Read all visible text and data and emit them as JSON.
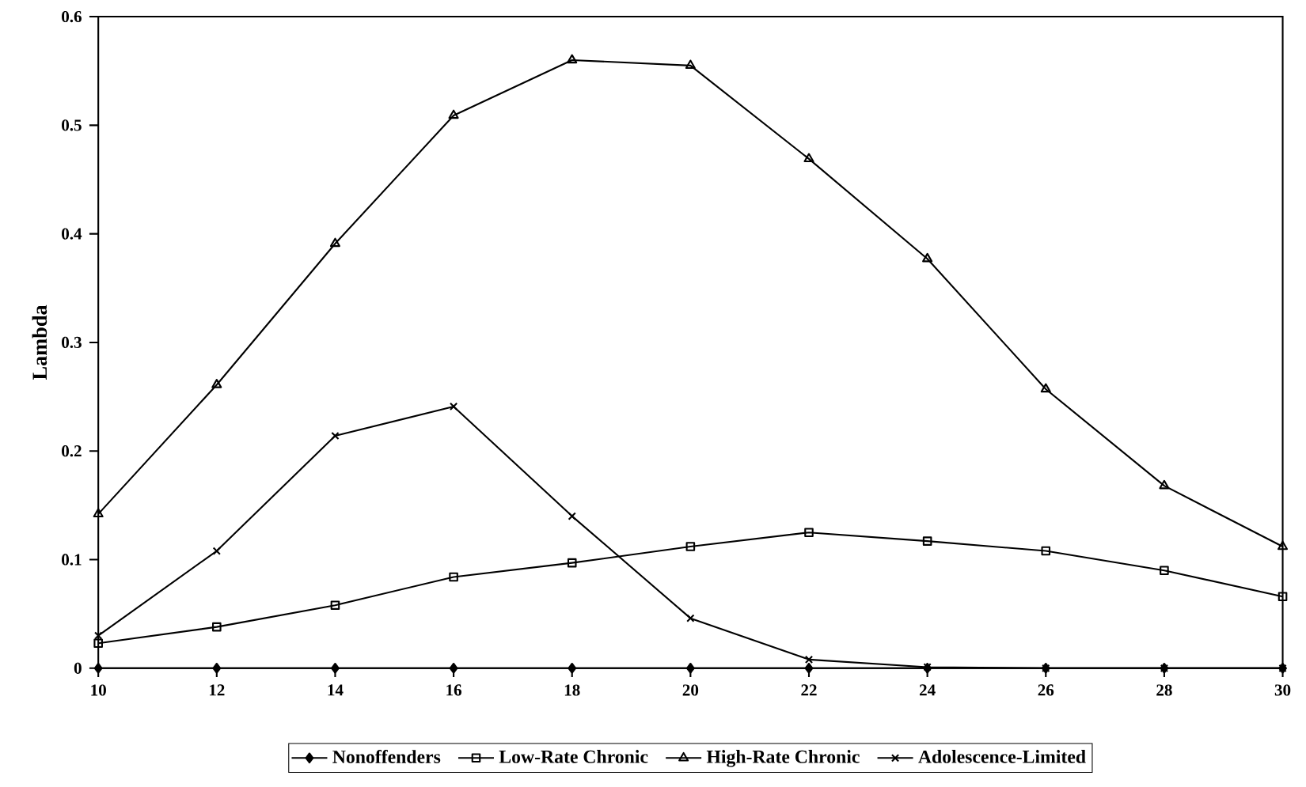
{
  "chart_data": {
    "type": "line",
    "ylabel": "Lambda",
    "x": [
      10,
      12,
      14,
      16,
      18,
      20,
      22,
      24,
      26,
      28,
      30
    ],
    "xlim": [
      10,
      30
    ],
    "xticks": [
      10,
      12,
      14,
      16,
      18,
      20,
      22,
      24,
      26,
      28,
      30
    ],
    "ylim": [
      0,
      0.6
    ],
    "yticks": [
      0,
      0.1,
      0.2,
      0.3,
      0.4,
      0.5,
      0.6
    ],
    "grid": false,
    "legend": "bottom",
    "line_style": "solid",
    "series": [
      {
        "name": "Nonoffenders",
        "color": "#000000",
        "marker": "diamond",
        "values": [
          0,
          0,
          0,
          0,
          0,
          0,
          0,
          0,
          0,
          0,
          0
        ]
      },
      {
        "name": "Low-Rate Chronic",
        "color": "#000000",
        "marker": "square",
        "values": [
          0.023,
          0.038,
          0.058,
          0.084,
          0.097,
          0.112,
          0.125,
          0.117,
          0.108,
          0.09,
          0.066
        ]
      },
      {
        "name": "High-Rate Chronic",
        "color": "#000000",
        "marker": "triangle",
        "values": [
          0.142,
          0.261,
          0.391,
          0.509,
          0.56,
          0.555,
          0.469,
          0.377,
          0.257,
          0.168,
          0.112
        ]
      },
      {
        "name": "Adolescence-Limited",
        "color": "#000000",
        "marker": "cross",
        "values": [
          0.03,
          0.108,
          0.214,
          0.241,
          0.14,
          0.046,
          0.008,
          0.001,
          0,
          0,
          0
        ]
      }
    ]
  }
}
